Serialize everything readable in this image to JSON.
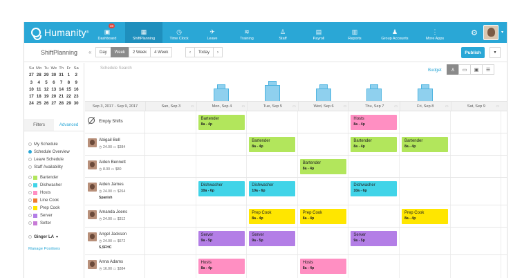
{
  "colors": {
    "accent": "#2aa7d6",
    "bartender": "#b2e65c",
    "dishwasher": "#41d4e8",
    "hosts": "#ff8fc2",
    "linecook": "#ef7b2f",
    "prepcook": "#ffe600",
    "server": "#b37ee6",
    "setter": "#c77ad6"
  },
  "topbar": {
    "logo": "Humanity",
    "logo_mark": "®",
    "badge": "40",
    "nav": [
      {
        "label": "Dashboard",
        "icon": "▣"
      },
      {
        "label": "ShiftPlanning",
        "icon": "▦"
      },
      {
        "label": "Time Clock",
        "icon": "◷"
      },
      {
        "label": "Leave",
        "icon": "✈"
      },
      {
        "label": "Training",
        "icon": "≋"
      },
      {
        "label": "Staff",
        "icon": "♙"
      },
      {
        "label": "Payroll",
        "icon": "▤"
      },
      {
        "label": "Reports",
        "icon": "▥"
      },
      {
        "label": "Group Accounts",
        "icon": "♟"
      },
      {
        "label": "More Apps",
        "icon": "⋮"
      }
    ]
  },
  "subbar": {
    "title": "ShiftPlanning",
    "collapse": "«",
    "views": [
      "Day",
      "Week",
      "2 Week",
      "4 Week"
    ],
    "prev": "‹",
    "today": "Today",
    "next": "›",
    "publish": "Publish",
    "more": "▼"
  },
  "calendar": {
    "head": [
      "Su",
      "Mo",
      "Tu",
      "We",
      "Th",
      "Fr",
      "Sa"
    ],
    "weeks": [
      [
        "27",
        "28",
        "29",
        "30",
        "31",
        "1",
        "2"
      ],
      [
        "3",
        "4",
        "5",
        "6",
        "7",
        "8",
        "9"
      ],
      [
        "10",
        "11",
        "12",
        "13",
        "14",
        "15",
        "16"
      ],
      [
        "17",
        "18",
        "19",
        "20",
        "21",
        "22",
        "23"
      ],
      [
        "24",
        "25",
        "26",
        "27",
        "28",
        "29",
        "30"
      ]
    ]
  },
  "filters": {
    "tabs": [
      "Filters",
      "Advanced"
    ],
    "options": [
      "My Schedule",
      "Schedule Overview",
      "Leave Schedule",
      "Staff Availability"
    ],
    "positions": [
      "Bartender",
      "Dishwasher",
      "Hosts",
      "Line Cook",
      "Prep Cook",
      "Server",
      "Setter"
    ],
    "location": "Ginger LA",
    "location_caret": "▾",
    "manage": "Manage Positions"
  },
  "grid": {
    "search_placeholder": "Schedule Search",
    "budget": "Budget",
    "view_icons": [
      "♙",
      "▭",
      "▣",
      "☰"
    ],
    "range": "Sep 3, 2017 - Sep 9, 2017",
    "days": [
      "Sun, Sep 3",
      "Mon, Sep 4",
      "Tue, Sep 5",
      "Wed, Sep 6",
      "Thu, Sep 7",
      "Fri, Sep 8",
      "Sat, Sep 9"
    ],
    "histogram": [
      0,
      2,
      3,
      2,
      2,
      2,
      0
    ],
    "rows": [
      {
        "name": "Empty Shifts",
        "meta": "",
        "extra": "",
        "empty": true,
        "shifts": [
          null,
          {
            "p": "Bartender",
            "t": "8a - 4p",
            "c": "#b2e65c"
          },
          null,
          null,
          {
            "p": "Hosts",
            "t": "8a - 4p",
            "c": "#ff8fc2"
          },
          null,
          null
        ]
      },
      {
        "name": "Abigail Bell",
        "meta": "◷ 24.00  ▭ $384",
        "extra": "",
        "shifts": [
          null,
          null,
          {
            "p": "Bartender",
            "t": "8a - 4p",
            "c": "#b2e65c"
          },
          null,
          {
            "p": "Bartender",
            "t": "8a - 4p",
            "c": "#b2e65c"
          },
          {
            "p": "Bartender",
            "t": "8a - 4p",
            "c": "#b2e65c"
          },
          null
        ]
      },
      {
        "name": "Aiden Bennett",
        "meta": "◷ 8.00  ▭ $80",
        "extra": "",
        "shifts": [
          null,
          null,
          null,
          {
            "p": "Bartender",
            "t": "8a - 4p",
            "c": "#b2e65c"
          },
          null,
          null,
          null
        ]
      },
      {
        "name": "Aiden James",
        "meta": "◷ 24.00  ▭ $264",
        "extra": "Spanish",
        "shifts": [
          null,
          {
            "p": "Dishwasher",
            "t": "10a - 6p",
            "c": "#41d4e8"
          },
          {
            "p": "Dishwasher",
            "t": "10a - 6p",
            "c": "#41d4e8"
          },
          null,
          {
            "p": "Dishwasher",
            "t": "10a - 6p",
            "c": "#41d4e8"
          },
          null,
          null
        ]
      },
      {
        "name": "Amanda Joens",
        "meta": "◷ 24.00  ▭ $312",
        "extra": "",
        "shifts": [
          null,
          null,
          {
            "p": "Prep Cook",
            "t": "8a - 4p",
            "c": "#ffe600"
          },
          {
            "p": "Prep Cook",
            "t": "8a - 4p",
            "c": "#ffe600"
          },
          null,
          {
            "p": "Prep Cook",
            "t": "8a - 4p",
            "c": "#ffe600"
          },
          null
        ]
      },
      {
        "name": "Angel Jackson",
        "meta": "◷ 24.00  ▭ $672",
        "extra": "S,SFHC",
        "shifts": [
          null,
          {
            "p": "Server",
            "t": "9a - 5p",
            "c": "#b37ee6"
          },
          {
            "p": "Server",
            "t": "9a - 5p",
            "c": "#b37ee6"
          },
          null,
          {
            "p": "Server",
            "t": "9a - 5p",
            "c": "#b37ee6"
          },
          null,
          null
        ]
      },
      {
        "name": "Anna Adams",
        "meta": "◷ 16.00  ▭ $384",
        "extra": "",
        "shifts": [
          null,
          {
            "p": "Hosts",
            "t": "8a - 4p",
            "c": "#ff8fc2"
          },
          null,
          {
            "p": "Hosts",
            "t": "8a - 4p",
            "c": "#ff8fc2"
          },
          null,
          null,
          null
        ]
      }
    ]
  }
}
